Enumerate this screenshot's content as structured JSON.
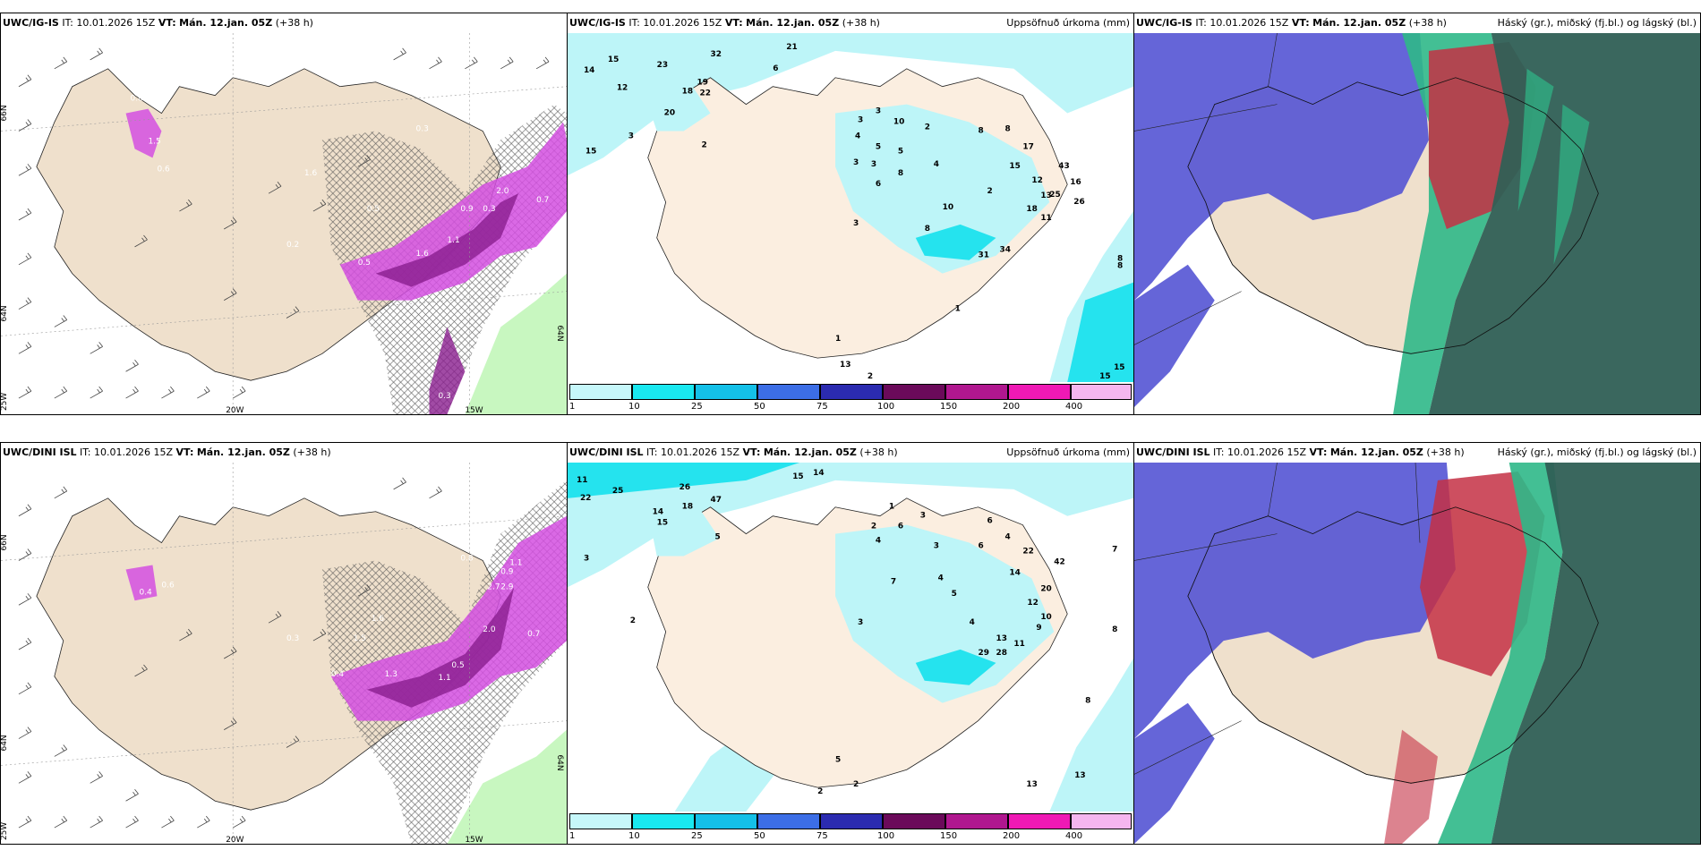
{
  "panels": [
    {
      "id": "p1",
      "model": "UWC/IG-IS",
      "it_label": "IT:",
      "it": "10.01.2026 15Z",
      "vt_label": "VT:",
      "vt": "Mán. 12.jan. 05Z",
      "lead": "(+38 h)",
      "right_title": "",
      "axis_labels": [
        "66N",
        "64N",
        "25W",
        "20W",
        "15W",
        "64N"
      ],
      "values": [
        "0.8",
        "1.5",
        "0.6",
        "0.3",
        "0.5",
        "1.6",
        "1.1",
        "0.9",
        "0.3",
        "0.7",
        "2.0",
        "1.6",
        "0.2",
        "0.5",
        "0.3"
      ]
    },
    {
      "id": "p2",
      "model": "UWC/IG-IS",
      "it_label": "IT:",
      "it": "10.01.2026 15Z",
      "vt_label": "VT:",
      "vt": "Mán. 12.jan. 05Z",
      "lead": "(+38 h)",
      "right_title": "Uppsöfnuð úrkoma (mm)",
      "values": [
        "14",
        "15",
        "23",
        "32",
        "21",
        "6",
        "12",
        "18",
        "19",
        "22",
        "20",
        "15",
        "3",
        "2",
        "3",
        "3",
        "10",
        "2",
        "8",
        "8",
        "17",
        "4",
        "5",
        "5",
        "3",
        "3",
        "6",
        "4",
        "8",
        "12",
        "43",
        "15",
        "2",
        "10",
        "13",
        "25",
        "16",
        "18",
        "11",
        "26",
        "8",
        "3",
        "34",
        "31",
        "8",
        "8",
        "1",
        "1",
        "13",
        "15",
        "15",
        "2"
      ]
    },
    {
      "id": "p3",
      "model": "UWC/IG-IS",
      "it_label": "IT:",
      "it": "10.01.2026 15Z",
      "vt_label": "VT:",
      "vt": "Mán. 12.jan. 05Z",
      "lead": "(+38 h)",
      "right_title": "Háský (gr.), miðský (fj.bl.) og lágský (bl.)"
    },
    {
      "id": "p4",
      "model": "UWC/DINI ISL",
      "it_label": "IT:",
      "it": "10.01.2026 15Z",
      "vt_label": "VT:",
      "vt": "Mán. 12.jan. 05Z",
      "lead": "(+38 h)",
      "right_title": "",
      "axis_labels": [
        "66N",
        "64N",
        "25W",
        "20W",
        "15W",
        "64N"
      ],
      "values": [
        "0.4",
        "0.6",
        "0.8",
        "1.1",
        "0.9",
        "2.7",
        "2.9",
        "1.6",
        "1.3",
        "1.1",
        "0.5",
        "2.0",
        "1.5",
        "0.7",
        "0.4",
        "0.3"
      ]
    },
    {
      "id": "p5",
      "model": "UWC/DINI ISL",
      "it_label": "IT:",
      "it": "10.01.2026 15Z",
      "vt_label": "VT:",
      "vt": "Mán. 12.jan. 05Z",
      "lead": "(+38 h)",
      "right_title": "Uppsöfnuð úrkoma (mm)",
      "values": [
        "11",
        "22",
        "25",
        "15",
        "14",
        "26",
        "18",
        "47",
        "14",
        "15",
        "5",
        "3",
        "2",
        "1",
        "3",
        "2",
        "4",
        "6",
        "6",
        "4",
        "22",
        "42",
        "3",
        "14",
        "6",
        "4",
        "7",
        "5",
        "12",
        "20",
        "10",
        "9",
        "4",
        "13",
        "11",
        "28",
        "29",
        "7",
        "8",
        "8",
        "3",
        "13",
        "2",
        "2",
        "5",
        "13"
      ]
    },
    {
      "id": "p6",
      "model": "UWC/DINI ISL",
      "it_label": "IT:",
      "it": "10.01.2026 15Z",
      "vt_label": "VT:",
      "vt": "Mán. 12.jan. 05Z",
      "lead": "(+38 h)",
      "right_title": "Háský (gr.), miðský (fj.bl.) og lágský (bl.)"
    }
  ],
  "colorbar": {
    "ticks": [
      "1",
      "10",
      "25",
      "50",
      "75",
      "100",
      "150",
      "200",
      "400"
    ],
    "colors": [
      "#c6f7fa",
      "#19e8f0",
      "#14c0e8",
      "#3c6ee6",
      "#2b2bb0",
      "#6b0a5a",
      "#b0178f",
      "#ef19b5",
      "#f5b6ef"
    ]
  },
  "colors": {
    "land": "#efe0cc",
    "cyan": "#bdf5f8",
    "cyan_strong": "#25e3ee",
    "magenta": "#d44fe0",
    "magenta_dark": "#8a1e8e",
    "green": "#c8f7c0",
    "cloud_blue": "#5454d4",
    "cloud_red": "#c43044",
    "cloud_green": "#2fb888",
    "sea_dark": "#2f5f55"
  }
}
